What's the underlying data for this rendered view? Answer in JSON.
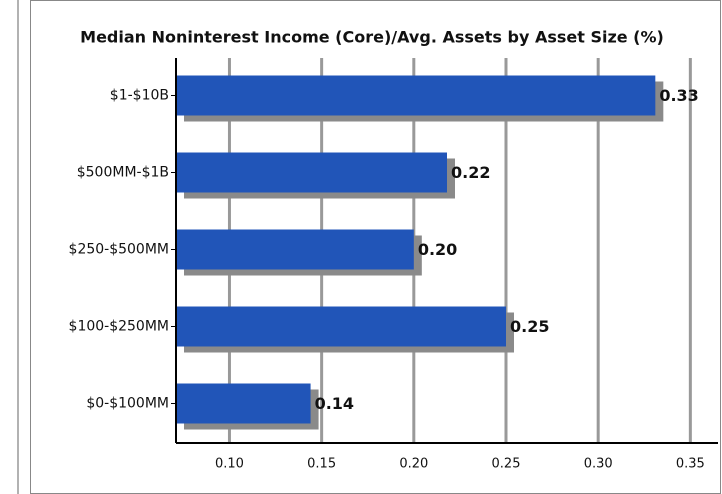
{
  "chart_data": {
    "type": "bar",
    "orientation": "horizontal",
    "title": "Median Noninterest Income (Core)/Avg. Assets by Asset Size (%)",
    "categories": [
      "$1-$10B",
      "$500MM-$1B",
      "$250-$500MM",
      "$100-$250MM",
      "$0-$100MM"
    ],
    "values": [
      0.331,
      0.218,
      0.2,
      0.25,
      0.144
    ],
    "value_labels": [
      "0.33",
      "0.22",
      "0.20",
      "0.25",
      "0.14"
    ],
    "color": "#2155b8",
    "xlim": [
      0.071,
      0.365
    ],
    "xticks": [
      {
        "value": 0.1,
        "label": "0.10"
      },
      {
        "value": 0.15,
        "label": "0.15"
      },
      {
        "value": 0.2,
        "label": "0.20"
      },
      {
        "value": 0.25,
        "label": "0.25"
      },
      {
        "value": 0.3,
        "label": "0.30"
      },
      {
        "value": 0.35,
        "label": "0.35"
      }
    ],
    "grid": true
  }
}
